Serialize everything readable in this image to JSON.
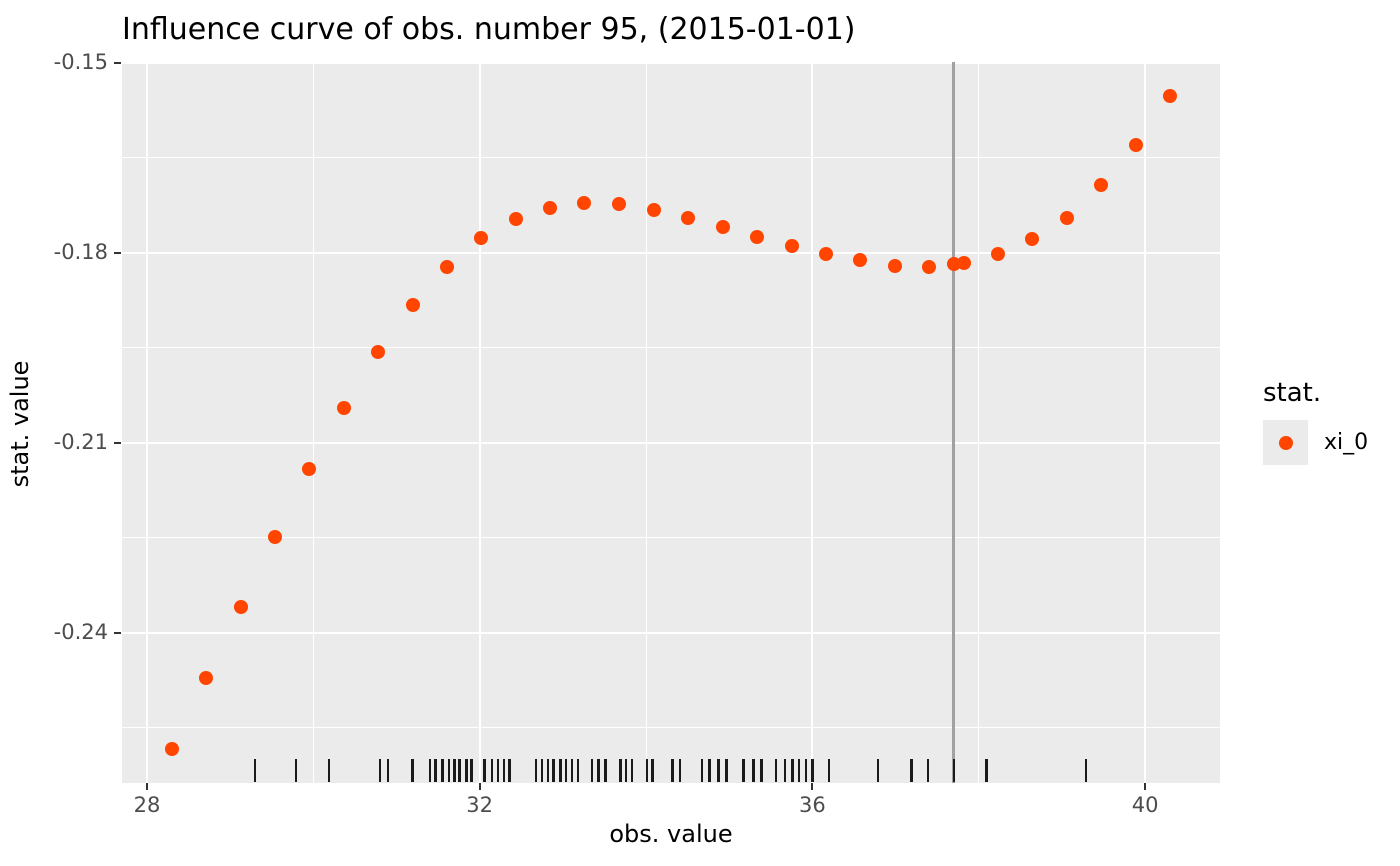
{
  "chart_data": {
    "type": "scatter",
    "title": "Influence curve of obs. number 95, (2015-01-01)",
    "xlabel": "obs. value",
    "ylabel": "stat. value",
    "xlim": [
      27.7,
      40.9
    ],
    "ylim": [
      -0.2637,
      -0.15
    ],
    "grid": "on",
    "x_ticks_major": [
      {
        "v": 28,
        "label": "28"
      },
      {
        "v": 32,
        "label": "32"
      },
      {
        "v": 36,
        "label": "36"
      },
      {
        "v": 40,
        "label": "40"
      }
    ],
    "x_ticks_minor": [
      30,
      34,
      38
    ],
    "y_ticks_major": [
      {
        "v": -0.15,
        "label": "-0.15"
      },
      {
        "v": -0.18,
        "label": "-0.18"
      },
      {
        "v": -0.21,
        "label": "-0.21"
      },
      {
        "v": -0.24,
        "label": "-0.24"
      }
    ],
    "y_ticks_minor": [
      -0.165,
      -0.195,
      -0.225,
      -0.255
    ],
    "series": [
      {
        "name": "xi_0",
        "color": "#FF4500",
        "points": [
          [
            28.3,
            -0.2583
          ],
          [
            28.71,
            -0.2471
          ],
          [
            29.13,
            -0.2359
          ],
          [
            29.54,
            -0.2248
          ],
          [
            29.95,
            -0.2141
          ],
          [
            30.37,
            -0.2045
          ],
          [
            30.78,
            -0.1956
          ],
          [
            31.2,
            -0.1882
          ],
          [
            31.61,
            -0.1822
          ],
          [
            32.02,
            -0.1776
          ],
          [
            32.44,
            -0.1746
          ],
          [
            32.85,
            -0.1729
          ],
          [
            33.26,
            -0.1721
          ],
          [
            33.68,
            -0.1723
          ],
          [
            34.09,
            -0.1732
          ],
          [
            34.51,
            -0.1745
          ],
          [
            34.92,
            -0.1759
          ],
          [
            35.33,
            -0.1775
          ],
          [
            35.75,
            -0.1789
          ],
          [
            36.16,
            -0.1802
          ],
          [
            36.57,
            -0.1811
          ],
          [
            36.99,
            -0.1821
          ],
          [
            37.4,
            -0.1822
          ],
          [
            37.7,
            -0.1817
          ],
          [
            37.82,
            -0.1816
          ],
          [
            38.23,
            -0.1802
          ],
          [
            38.64,
            -0.1778
          ],
          [
            39.06,
            -0.1744
          ],
          [
            39.47,
            -0.1693
          ],
          [
            39.89,
            -0.1629
          ],
          [
            40.3,
            -0.1552
          ]
        ]
      }
    ],
    "vline": {
      "x": 37.7,
      "color": "#A1A1A1"
    },
    "rug": [
      29.3,
      29.79,
      30.19,
      30.8,
      30.9,
      31.19,
      31.4,
      31.47,
      31.55,
      31.63,
      31.7,
      31.76,
      31.84,
      31.9,
      32.06,
      32.15,
      32.22,
      32.29,
      32.36,
      32.68,
      32.75,
      32.82,
      32.89,
      32.97,
      33.04,
      33.11,
      33.18,
      33.35,
      33.43,
      33.51,
      33.69,
      33.76,
      33.83,
      34.01,
      34.08,
      34.32,
      34.41,
      34.67,
      34.76,
      34.87,
      34.97,
      35.17,
      35.29,
      35.39,
      35.56,
      35.67,
      35.76,
      35.84,
      35.92,
      36.0,
      36.2,
      36.79,
      37.19,
      37.39,
      37.7,
      38.09,
      39.29
    ],
    "legend": {
      "position": "right",
      "title": "stat.",
      "items": [
        {
          "label": "xi_0",
          "color": "#FF4500"
        }
      ]
    },
    "colors": {
      "panel_background": "#EBEBEB",
      "gridline": "#FFFFFF",
      "point": "#FF4500",
      "vline": "#A1A1A1",
      "rug": "#1A1A1A",
      "tick_mark": "#333333",
      "tick_label": "#4D4D4D",
      "text": "#000000"
    }
  }
}
